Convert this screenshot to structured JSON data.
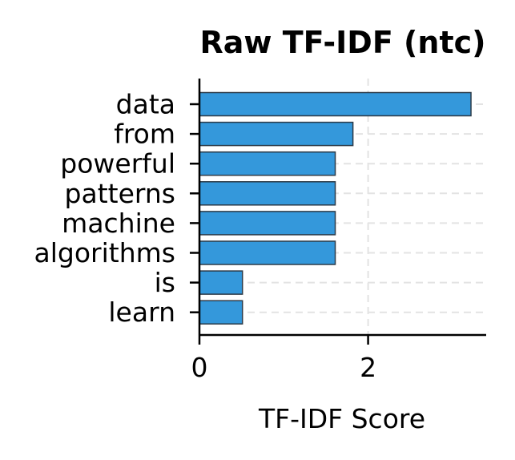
{
  "chart_data": {
    "type": "bar",
    "orientation": "horizontal",
    "title": "Raw TF-IDF (ntc)",
    "xlabel": "TF-IDF Score",
    "ylabel": "",
    "categories": [
      "data",
      "from",
      "powerful",
      "patterns",
      "machine",
      "algorithms",
      "is",
      "learn"
    ],
    "values": [
      3.22,
      1.82,
      1.61,
      1.61,
      1.61,
      1.61,
      0.51,
      0.51
    ],
    "xlim": [
      0,
      3.4
    ],
    "xticks": [
      "0",
      "2"
    ],
    "xtick_values": [
      0,
      2
    ],
    "grid": true,
    "bar_color": "#3498db",
    "edge_color": "#2b3a48"
  }
}
